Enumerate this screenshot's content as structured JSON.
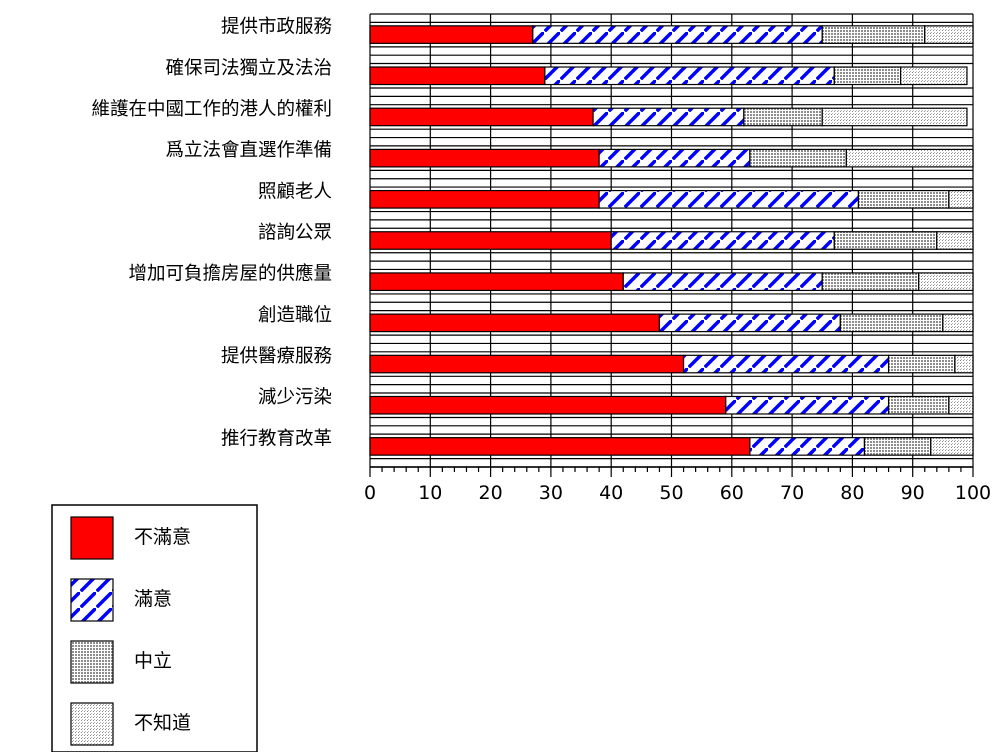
{
  "chart_data": {
    "type": "bar",
    "orientation": "horizontal",
    "stacked": true,
    "categories": [
      "提供市政服務",
      "確保司法獨立及法治",
      "維護在中國工作的港人的權利",
      "爲立法會直選作準備",
      "照顧老人",
      "諮詢公眾",
      "增加可負擔房屋的供應量",
      "創造職位",
      "提供醫療服務",
      "減少污染",
      "推行教育改革"
    ],
    "series": [
      {
        "name": "不滿意",
        "color": "#ff0000",
        "pattern": "solid",
        "values": [
          27,
          29,
          37,
          38,
          38,
          40,
          42,
          48,
          52,
          59,
          63
        ]
      },
      {
        "name": "滿意",
        "color": "#0000ff",
        "pattern": "diagonal-dash",
        "values": [
          48,
          48,
          25,
          25,
          43,
          37,
          33,
          30,
          34,
          27,
          19
        ]
      },
      {
        "name": "中立",
        "color": "#9a9a9a",
        "pattern": "dense-dots",
        "values": [
          17,
          11,
          13,
          16,
          15,
          17,
          16,
          17,
          11,
          10,
          11
        ]
      },
      {
        "name": "不知道",
        "color": "#c8c8c8",
        "pattern": "light-dots",
        "values": [
          8,
          11,
          24,
          21,
          4,
          6,
          9,
          5,
          3,
          4,
          7
        ]
      }
    ],
    "xlim": [
      0,
      100
    ],
    "x_ticks": [
      "0",
      "10",
      "20",
      "30",
      "40",
      "50",
      "60",
      "70",
      "80",
      "90",
      "100"
    ],
    "grid": true,
    "legend_position": "bottom-left"
  }
}
